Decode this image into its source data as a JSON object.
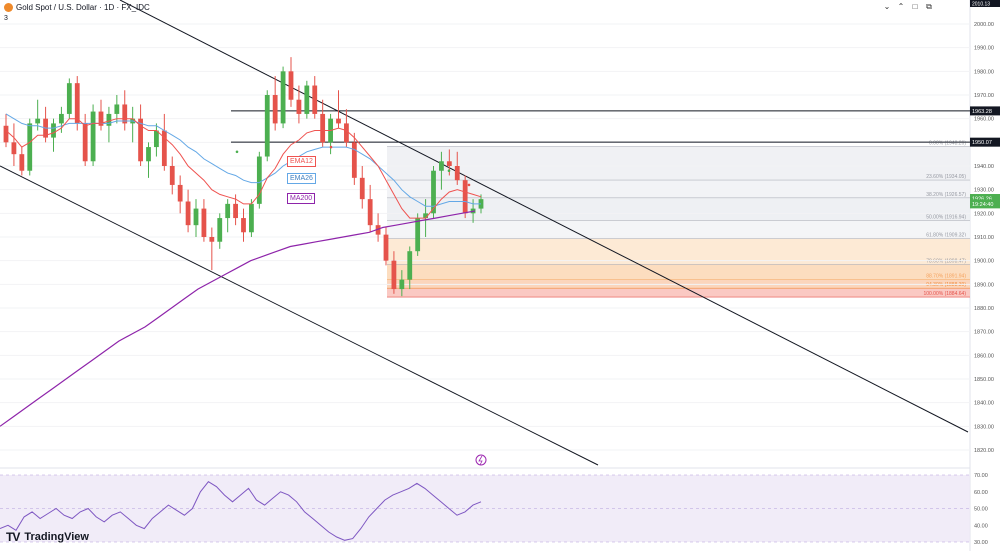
{
  "header": {
    "symbol": "Gold Spot / U.S. Dollar · 1D · FX_IDC",
    "sub": "3",
    "top_price_tag": "2010.13",
    "win_buttons": [
      "⌄",
      "⌃",
      "□",
      "⧉"
    ]
  },
  "brand": {
    "name": "TradingView",
    "mark": "TV"
  },
  "colors": {
    "bull": "#4caf50",
    "bear": "#e5534b",
    "ema12": "#ef5350",
    "ema26": "#64a8e6",
    "ma200": "#8e24aa",
    "rsi": "#7e57c2"
  },
  "legend": {
    "ema12": "EMA12",
    "ema26": "EMA26",
    "ma200": "MA200"
  },
  "chart_data": {
    "type": "candlestick",
    "y_axis": {
      "min": 1820,
      "max": 2010,
      "ticks": [
        "2000.00",
        "1990.00",
        "1980.00",
        "1970.00",
        "1960.00",
        "1950.00",
        "1940.00",
        "1930.00",
        "1920.00",
        "1910.00",
        "1900.00",
        "1890.00",
        "1880.00",
        "1870.00",
        "1860.00",
        "1850.00",
        "1840.00",
        "1830.00",
        "1820.00"
      ],
      "tick_values": [
        2000,
        1990,
        1980,
        1970,
        1960,
        1950,
        1940,
        1930,
        1920,
        1910,
        1900,
        1890,
        1880,
        1870,
        1860,
        1850,
        1840,
        1830,
        1820
      ]
    },
    "price_tags": [
      {
        "value": 1963.28,
        "label": "1963.28",
        "style": "dark"
      },
      {
        "value": 1950.07,
        "label": "1950.07",
        "style": "dark"
      },
      {
        "value": 1926.26,
        "label": "1926.26",
        "style": "green"
      },
      {
        "value": 1924.0,
        "label": "19:24:40",
        "style": "green"
      }
    ],
    "horizontal_levels": [
      1963.28,
      1950.07
    ],
    "fibonacci": [
      {
        "label": "0.00% (1948.26)",
        "value": 1948.26
      },
      {
        "label": "23.60% (1934.05)",
        "value": 1934.05
      },
      {
        "label": "38.20% (1926.57)",
        "value": 1926.57
      },
      {
        "label": "50.00% (1916.94)",
        "value": 1916.94
      },
      {
        "label": "61.80% (1909.32)",
        "value": 1909.32
      },
      {
        "label": "78.60% (1898.47)",
        "value": 1898.47
      },
      {
        "label": "88.70% (1891.94)",
        "value": 1891.94
      },
      {
        "label": "94.30% (1888.39)",
        "value": 1888.39
      },
      {
        "label": "100.00% (1884.64)",
        "value": 1884.64
      }
    ],
    "candles": [
      [
        1957,
        1962,
        1948,
        1950
      ],
      [
        1950,
        1958,
        1940,
        1945
      ],
      [
        1945,
        1948,
        1936,
        1938
      ],
      [
        1938,
        1960,
        1936,
        1958
      ],
      [
        1958,
        1968,
        1955,
        1960
      ],
      [
        1960,
        1965,
        1950,
        1952
      ],
      [
        1952,
        1960,
        1946,
        1958
      ],
      [
        1958,
        1965,
        1954,
        1962
      ],
      [
        1962,
        1977,
        1960,
        1975
      ],
      [
        1975,
        1978,
        1955,
        1958
      ],
      [
        1958,
        1962,
        1940,
        1942
      ],
      [
        1942,
        1966,
        1940,
        1963
      ],
      [
        1963,
        1968,
        1955,
        1957
      ],
      [
        1957,
        1965,
        1950,
        1962
      ],
      [
        1962,
        1970,
        1958,
        1966
      ],
      [
        1966,
        1972,
        1955,
        1958
      ],
      [
        1958,
        1965,
        1950,
        1960
      ],
      [
        1960,
        1966,
        1940,
        1942
      ],
      [
        1942,
        1950,
        1935,
        1948
      ],
      [
        1948,
        1958,
        1944,
        1955
      ],
      [
        1955,
        1962,
        1938,
        1940
      ],
      [
        1940,
        1944,
        1928,
        1932
      ],
      [
        1932,
        1936,
        1920,
        1925
      ],
      [
        1925,
        1930,
        1912,
        1915
      ],
      [
        1915,
        1926,
        1910,
        1922
      ],
      [
        1922,
        1926,
        1908,
        1910
      ],
      [
        1910,
        1914,
        1896,
        1908
      ],
      [
        1908,
        1920,
        1905,
        1918
      ],
      [
        1918,
        1926,
        1912,
        1924
      ],
      [
        1924,
        1928,
        1915,
        1918
      ],
      [
        1918,
        1922,
        1908,
        1912
      ],
      [
        1912,
        1926,
        1910,
        1924
      ],
      [
        1924,
        1946,
        1922,
        1944
      ],
      [
        1944,
        1972,
        1942,
        1970
      ],
      [
        1970,
        1978,
        1955,
        1958
      ],
      [
        1958,
        1982,
        1956,
        1980
      ],
      [
        1980,
        1986,
        1965,
        1968
      ],
      [
        1968,
        1974,
        1958,
        1962
      ],
      [
        1962,
        1976,
        1960,
        1974
      ],
      [
        1974,
        1978,
        1960,
        1962
      ],
      [
        1962,
        1968,
        1948,
        1950
      ],
      [
        1950,
        1962,
        1945,
        1960
      ],
      [
        1960,
        1972,
        1956,
        1958
      ],
      [
        1958,
        1964,
        1948,
        1950
      ],
      [
        1950,
        1954,
        1932,
        1935
      ],
      [
        1935,
        1940,
        1922,
        1926
      ],
      [
        1926,
        1932,
        1912,
        1915
      ],
      [
        1915,
        1920,
        1908,
        1911
      ],
      [
        1911,
        1914,
        1898,
        1900
      ],
      [
        1900,
        1904,
        1886,
        1888
      ],
      [
        1888,
        1896,
        1885,
        1892
      ],
      [
        1892,
        1906,
        1888,
        1904
      ],
      [
        1904,
        1920,
        1902,
        1918
      ],
      [
        1918,
        1926,
        1910,
        1920
      ],
      [
        1920,
        1940,
        1918,
        1938
      ],
      [
        1938,
        1946,
        1930,
        1942
      ],
      [
        1942,
        1947,
        1936,
        1940
      ],
      [
        1940,
        1946,
        1932,
        1934
      ],
      [
        1934,
        1936,
        1918,
        1920
      ],
      [
        1920,
        1926,
        1916,
        1922
      ],
      [
        1922,
        1928,
        1920,
        1926
      ]
    ],
    "ema12": [
      1955,
      1952,
      1948,
      1950,
      1953,
      1953,
      1954,
      1956,
      1960,
      1960,
      1957,
      1958,
      1958,
      1959,
      1960,
      1960,
      1960,
      1957,
      1955,
      1955,
      1952,
      1949,
      1945,
      1940,
      1937,
      1934,
      1930,
      1928,
      1927,
      1926,
      1924,
      1924,
      1928,
      1935,
      1939,
      1945,
      1949,
      1951,
      1954,
      1955,
      1955,
      1955,
      1956,
      1955,
      1952,
      1948,
      1944,
      1940,
      1934,
      1928,
      1922,
      1918,
      1918,
      1918,
      1922,
      1926,
      1929,
      1930,
      1929,
      1928,
      1927
    ],
    "ema26": [
      1962,
      1960,
      1958,
      1957,
      1957,
      1956,
      1956,
      1957,
      1958,
      1958,
      1958,
      1958,
      1958,
      1958,
      1959,
      1959,
      1959,
      1958,
      1957,
      1957,
      1955,
      1953,
      1951,
      1948,
      1946,
      1943,
      1941,
      1939,
      1937,
      1936,
      1934,
      1933,
      1933,
      1935,
      1937,
      1940,
      1942,
      1944,
      1946,
      1947,
      1948,
      1948,
      1948,
      1948,
      1947,
      1945,
      1943,
      1940,
      1937,
      1934,
      1930,
      1927,
      1925,
      1923,
      1923,
      1924,
      1925,
      1925,
      1925,
      1924,
      1924
    ],
    "ma200": [
      1830,
      1834,
      1838,
      1842,
      1846,
      1850,
      1854,
      1858,
      1862,
      1866,
      1869,
      1872,
      1876,
      1880,
      1884,
      1888,
      1891,
      1894,
      1897,
      1900,
      1902,
      1904,
      1906,
      1907,
      1908,
      1909,
      1910,
      1911,
      1912,
      1914,
      1915,
      1916,
      1917,
      1918,
      1919,
      1920,
      1921
    ],
    "rsi": {
      "ticks": [
        "70.00",
        "60.00",
        "50.00",
        "40.00",
        "30.00"
      ],
      "tick_values": [
        70,
        60,
        50,
        40,
        30
      ],
      "values": [
        38,
        40,
        37,
        45,
        48,
        44,
        47,
        50,
        46,
        44,
        48,
        50,
        45,
        42,
        46,
        48,
        44,
        40,
        38,
        44,
        48,
        52,
        49,
        46,
        50,
        60,
        66,
        63,
        58,
        54,
        58,
        62,
        55,
        52,
        56,
        60,
        58,
        54,
        48,
        44,
        40,
        36,
        33,
        31,
        32,
        38,
        45,
        50,
        55,
        58,
        60,
        62,
        65,
        62,
        58,
        54,
        50,
        46,
        48,
        52,
        54
      ],
      "upper": 70,
      "lower": 30
    }
  }
}
